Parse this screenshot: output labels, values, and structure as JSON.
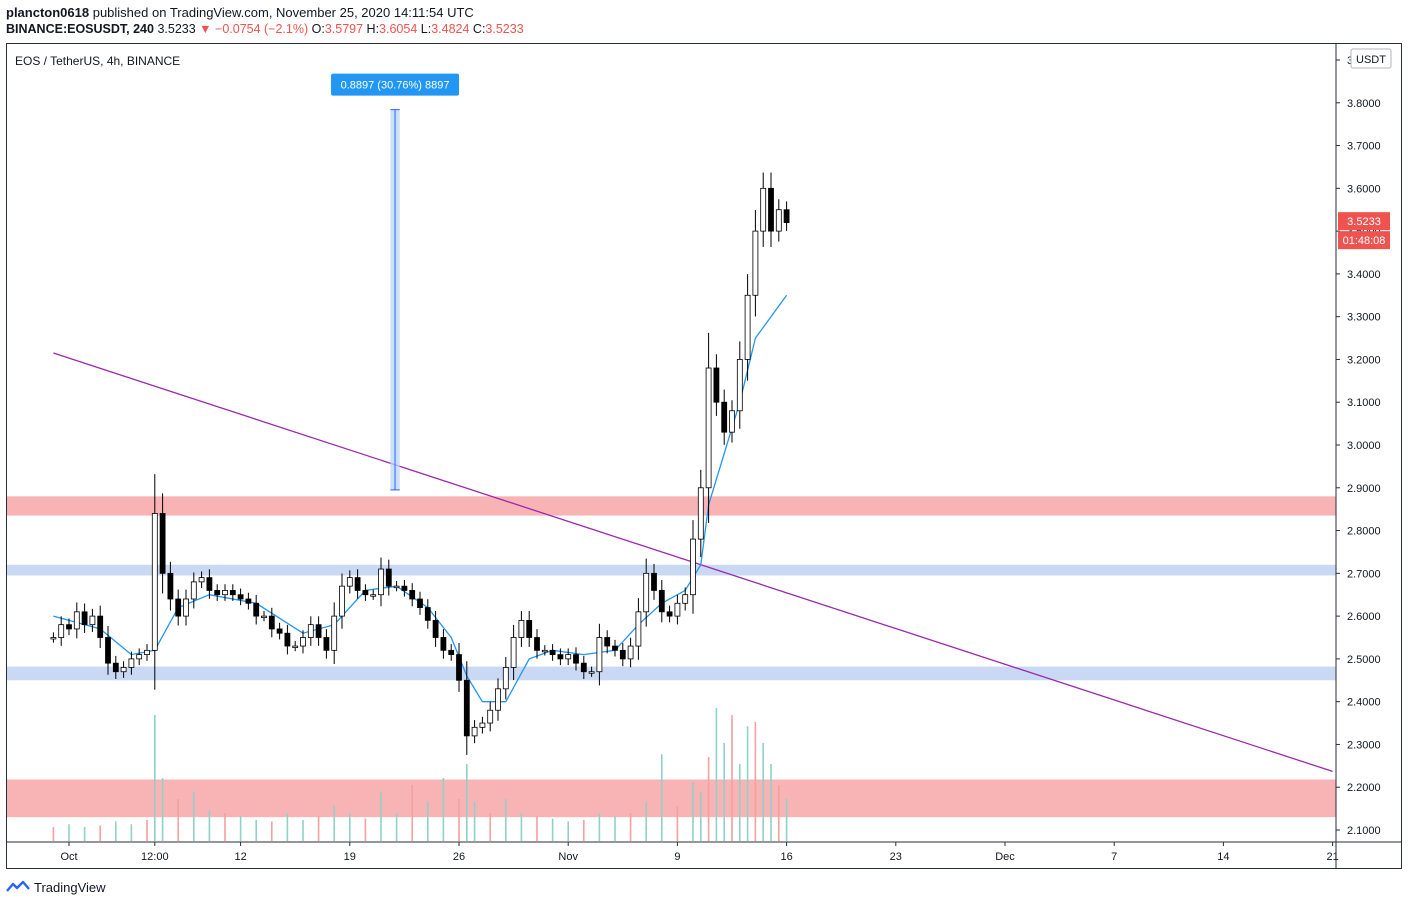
{
  "header": {
    "user": "plancton0618",
    "published_text": "published on TradingView.com, November 25, 2020 14:11:54 UTC",
    "symbol_line": "BINANCE:EOSUSDT, 240",
    "last": "3.5233",
    "change": "−0.0754 (−2.1%)",
    "open_label": "O:",
    "open": "3.5797",
    "high_label": "H:",
    "high": "3.6054",
    "low_label": "L:",
    "low": "3.4824",
    "close_label": "C:",
    "close": "3.5233"
  },
  "footer": {
    "brand": "TradingView"
  },
  "chart_data": {
    "type": "candlestick",
    "title": "EOS / TetherUS, 4h, BINANCE",
    "currency_label": "USDT",
    "price_label": "3.5233",
    "countdown_label": "01:48:08",
    "measure_label": "0.8897 (30.76%) 8897",
    "y_ticks": [
      "3.9000",
      "3.8000",
      "3.7000",
      "3.6000",
      "3.5000",
      "3.4000",
      "3.3000",
      "3.2000",
      "3.1000",
      "3.0000",
      "2.9000",
      "2.8000",
      "2.7000",
      "2.6000",
      "2.5000",
      "2.4000",
      "2.3000",
      "2.2000",
      "2.1000"
    ],
    "x_ticks": [
      "Oct",
      "12:00",
      "12",
      "19",
      "26",
      "Nov",
      "9",
      "16",
      "23",
      "Dec",
      "7",
      "14",
      "21"
    ],
    "ylim": [
      2.07,
      3.93
    ],
    "zones": [
      {
        "low": 2.835,
        "high": 2.88,
        "color": "#f8b4b4"
      },
      {
        "low": 2.695,
        "high": 2.72,
        "color": "#c9d9f4"
      },
      {
        "low": 2.45,
        "high": 2.482,
        "color": "#c9d9f4"
      },
      {
        "low": 2.13,
        "high": 2.218,
        "color": "#f8b4b4"
      }
    ],
    "trendline": {
      "from": [
        -1.0,
        3.215
      ],
      "to": [
        81.0,
        2.237
      ],
      "color": "#9c27b0"
    },
    "measure": {
      "x_from": 20.6,
      "x_to": 21.2,
      "low": 2.895,
      "high": 3.784
    },
    "ma_color": "#2196f3",
    "up_color": "#ffffff",
    "down_color": "#000000",
    "candles": [
      [
        -1.0,
        2.55
      ],
      [
        -0.5,
        2.58
      ],
      [
        0.0,
        2.57
      ],
      [
        0.5,
        2.61
      ],
      [
        1.0,
        2.58
      ],
      [
        1.5,
        2.6
      ],
      [
        2.0,
        2.55
      ],
      [
        2.5,
        2.49
      ],
      [
        3.0,
        2.47
      ],
      [
        3.5,
        2.48
      ],
      [
        4.0,
        2.5
      ],
      [
        4.5,
        2.51
      ],
      [
        5.0,
        2.52
      ],
      [
        5.5,
        2.84
      ],
      [
        6.0,
        2.7
      ],
      [
        6.5,
        2.64
      ],
      [
        7.0,
        2.6
      ],
      [
        7.5,
        2.64
      ],
      [
        8.0,
        2.68
      ],
      [
        8.5,
        2.69
      ],
      [
        9.0,
        2.66
      ],
      [
        9.5,
        2.65
      ],
      [
        10.0,
        2.66
      ],
      [
        10.5,
        2.65
      ],
      [
        11.0,
        2.64
      ],
      [
        11.5,
        2.63
      ],
      [
        12.0,
        2.6
      ],
      [
        12.5,
        2.6
      ],
      [
        13.0,
        2.57
      ],
      [
        13.5,
        2.56
      ],
      [
        14.0,
        2.53
      ],
      [
        14.5,
        2.53
      ],
      [
        15.0,
        2.55
      ],
      [
        15.5,
        2.58
      ],
      [
        16.0,
        2.55
      ],
      [
        16.5,
        2.52
      ],
      [
        17.0,
        2.6
      ],
      [
        17.5,
        2.67
      ],
      [
        18.0,
        2.69
      ],
      [
        18.5,
        2.66
      ],
      [
        19.0,
        2.65
      ],
      [
        19.5,
        2.65
      ],
      [
        20.0,
        2.71
      ],
      [
        20.5,
        2.67
      ],
      [
        21.0,
        2.67
      ],
      [
        21.5,
        2.66
      ],
      [
        22.0,
        2.64
      ],
      [
        22.5,
        2.62
      ],
      [
        23.0,
        2.59
      ],
      [
        23.5,
        2.55
      ],
      [
        24.0,
        2.52
      ],
      [
        24.5,
        2.51
      ],
      [
        25.0,
        2.45
      ],
      [
        25.5,
        2.32
      ],
      [
        26.0,
        2.34
      ],
      [
        26.5,
        2.35
      ],
      [
        27.0,
        2.38
      ],
      [
        27.5,
        2.43
      ],
      [
        28.0,
        2.48
      ],
      [
        28.5,
        2.55
      ],
      [
        29.0,
        2.59
      ],
      [
        29.5,
        2.55
      ],
      [
        30.0,
        2.52
      ],
      [
        30.5,
        2.52
      ],
      [
        31.0,
        2.51
      ],
      [
        31.5,
        2.5
      ],
      [
        32.0,
        2.51
      ],
      [
        32.5,
        2.49
      ],
      [
        33.0,
        2.47
      ],
      [
        33.5,
        2.47
      ],
      [
        34.0,
        2.55
      ],
      [
        34.5,
        2.53
      ],
      [
        35.0,
        2.52
      ],
      [
        35.5,
        2.5
      ],
      [
        36.0,
        2.53
      ],
      [
        36.5,
        2.61
      ],
      [
        37.0,
        2.7
      ],
      [
        37.5,
        2.66
      ],
      [
        38.0,
        2.61
      ],
      [
        38.5,
        2.6
      ],
      [
        39.0,
        2.63
      ],
      [
        39.5,
        2.65
      ],
      [
        40.0,
        2.78
      ],
      [
        40.5,
        2.9
      ],
      [
        41.0,
        3.18
      ],
      [
        41.5,
        3.1
      ],
      [
        42.0,
        3.03
      ],
      [
        42.5,
        3.08
      ],
      [
        43.0,
        3.2
      ],
      [
        43.5,
        3.35
      ],
      [
        44.0,
        3.5
      ],
      [
        44.5,
        3.6
      ],
      [
        45.0,
        3.5
      ],
      [
        45.5,
        3.55
      ],
      [
        46.0,
        3.52
      ]
    ],
    "ma": [
      [
        -1.0,
        2.6
      ],
      [
        2.0,
        2.57
      ],
      [
        4.0,
        2.51
      ],
      [
        5.5,
        2.52
      ],
      [
        7.0,
        2.62
      ],
      [
        9.0,
        2.65
      ],
      [
        12.0,
        2.63
      ],
      [
        15.0,
        2.56
      ],
      [
        17.0,
        2.58
      ],
      [
        19.0,
        2.66
      ],
      [
        21.0,
        2.67
      ],
      [
        23.0,
        2.62
      ],
      [
        24.5,
        2.55
      ],
      [
        25.5,
        2.46
      ],
      [
        26.5,
        2.4
      ],
      [
        28.0,
        2.4
      ],
      [
        29.5,
        2.5
      ],
      [
        31.0,
        2.52
      ],
      [
        33.0,
        2.51
      ],
      [
        35.0,
        2.52
      ],
      [
        36.5,
        2.58
      ],
      [
        38.0,
        2.63
      ],
      [
        39.5,
        2.66
      ],
      [
        40.5,
        2.72
      ],
      [
        41.0,
        2.86
      ],
      [
        42.0,
        2.98
      ],
      [
        43.0,
        3.1
      ],
      [
        44.0,
        3.25
      ],
      [
        45.0,
        3.3
      ],
      [
        46.0,
        3.35
      ]
    ],
    "volume": [
      [
        -1.0,
        0.1
      ],
      [
        0.0,
        0.12
      ],
      [
        1.0,
        0.1
      ],
      [
        2.0,
        0.11
      ],
      [
        3.0,
        0.14
      ],
      [
        4.0,
        0.12
      ],
      [
        5.0,
        0.15
      ],
      [
        5.5,
        0.9
      ],
      [
        6.0,
        0.45
      ],
      [
        7.0,
        0.3
      ],
      [
        8.0,
        0.35
      ],
      [
        9.0,
        0.22
      ],
      [
        10.0,
        0.2
      ],
      [
        11.0,
        0.18
      ],
      [
        12.0,
        0.15
      ],
      [
        13.0,
        0.14
      ],
      [
        14.0,
        0.2
      ],
      [
        15.0,
        0.15
      ],
      [
        16.0,
        0.18
      ],
      [
        17.0,
        0.25
      ],
      [
        18.0,
        0.2
      ],
      [
        19.0,
        0.16
      ],
      [
        20.0,
        0.35
      ],
      [
        21.0,
        0.2
      ],
      [
        22.0,
        0.4
      ],
      [
        23.0,
        0.28
      ],
      [
        24.0,
        0.45
      ],
      [
        25.0,
        0.3
      ],
      [
        25.5,
        0.55
      ],
      [
        26.0,
        0.28
      ],
      [
        27.0,
        0.2
      ],
      [
        28.0,
        0.3
      ],
      [
        29.0,
        0.2
      ],
      [
        30.0,
        0.18
      ],
      [
        31.0,
        0.16
      ],
      [
        32.0,
        0.14
      ],
      [
        33.0,
        0.15
      ],
      [
        34.0,
        0.2
      ],
      [
        35.0,
        0.18
      ],
      [
        36.0,
        0.2
      ],
      [
        37.0,
        0.28
      ],
      [
        38.0,
        0.62
      ],
      [
        39.0,
        0.25
      ],
      [
        40.0,
        0.42
      ],
      [
        40.5,
        0.35
      ],
      [
        41.0,
        0.6
      ],
      [
        41.5,
        0.95
      ],
      [
        42.0,
        0.7
      ],
      [
        42.5,
        0.9
      ],
      [
        43.0,
        0.55
      ],
      [
        43.5,
        0.82
      ],
      [
        44.0,
        0.85
      ],
      [
        44.5,
        0.7
      ],
      [
        45.0,
        0.55
      ],
      [
        45.5,
        0.4
      ],
      [
        46.0,
        0.3
      ]
    ]
  }
}
